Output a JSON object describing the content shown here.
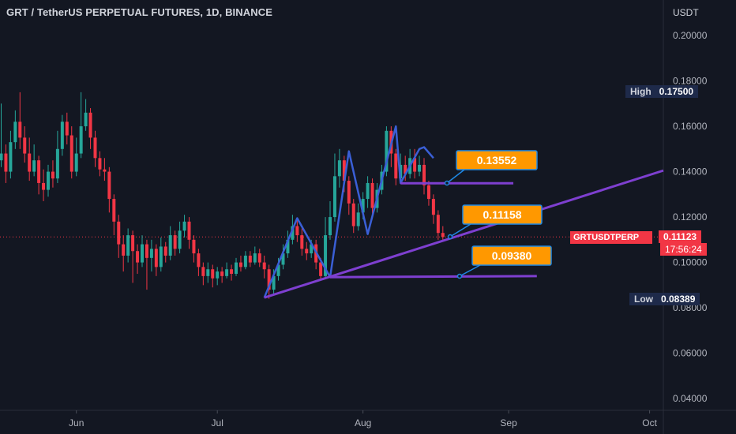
{
  "header": {
    "title": "GRT / TetherUS PERPETUAL FUTURES, 1D, BINANCE"
  },
  "price_axis": {
    "currency": "USDT"
  },
  "markers": {
    "high": {
      "label": "High",
      "value": "0.17500"
    },
    "low": {
      "label": "Low",
      "value": "0.08389"
    },
    "last": {
      "symbol": "GRTUSDTPERP",
      "value": "0.11123",
      "countdown": "17:56:24"
    }
  },
  "annotations": [
    {
      "text": "0.13552",
      "value": 0.13552
    },
    {
      "text": "0.11158",
      "value": 0.11158
    },
    {
      "text": "0.09380",
      "value": 0.0938
    }
  ],
  "colors": {
    "up": "#26a69a",
    "down": "#f23645",
    "background": "#131722",
    "pattern": "#3a5fd6",
    "support": "#7e3fd0",
    "callout": "#ff9800",
    "callout_border": "#1e88e5"
  },
  "chart_data": {
    "type": "candlestick",
    "title": "GRT / TetherUS PERPETUAL FUTURES, 1D, BINANCE",
    "ylabel": "USDT",
    "ylim": [
      0.035,
      0.215
    ],
    "y_ticks": [
      "0.20000",
      "0.18000",
      "0.16000",
      "0.14000",
      "0.12000",
      "0.10000",
      "0.08000",
      "0.06000",
      "0.04000"
    ],
    "x_ticks": [
      "Jun",
      "Jul",
      "Aug",
      "Sep",
      "Oct"
    ],
    "x_tick_day": [
      16,
      46,
      77,
      108,
      138
    ],
    "candles": [
      [
        0.145,
        0.148,
        0.17,
        0.142
      ],
      [
        0.148,
        0.14,
        0.152,
        0.135
      ],
      [
        0.14,
        0.153,
        0.158,
        0.137
      ],
      [
        0.153,
        0.162,
        0.167,
        0.15
      ],
      [
        0.162,
        0.155,
        0.175,
        0.15
      ],
      [
        0.155,
        0.148,
        0.16,
        0.144
      ],
      [
        0.148,
        0.14,
        0.155,
        0.136
      ],
      [
        0.14,
        0.145,
        0.152,
        0.138
      ],
      [
        0.145,
        0.135,
        0.147,
        0.13
      ],
      [
        0.135,
        0.132,
        0.141,
        0.127
      ],
      [
        0.132,
        0.14,
        0.143,
        0.129
      ],
      [
        0.14,
        0.137,
        0.145,
        0.133
      ],
      [
        0.137,
        0.15,
        0.158,
        0.135
      ],
      [
        0.15,
        0.162,
        0.165,
        0.147
      ],
      [
        0.162,
        0.156,
        0.166,
        0.152
      ],
      [
        0.156,
        0.14,
        0.16,
        0.137
      ],
      [
        0.14,
        0.148,
        0.155,
        0.138
      ],
      [
        0.148,
        0.16,
        0.175,
        0.146
      ],
      [
        0.16,
        0.166,
        0.172,
        0.158
      ],
      [
        0.166,
        0.155,
        0.168,
        0.15
      ],
      [
        0.155,
        0.146,
        0.158,
        0.142
      ],
      [
        0.146,
        0.141,
        0.149,
        0.138
      ],
      [
        0.141,
        0.14,
        0.146,
        0.136
      ],
      [
        0.14,
        0.128,
        0.142,
        0.122
      ],
      [
        0.128,
        0.118,
        0.13,
        0.112
      ],
      [
        0.118,
        0.108,
        0.121,
        0.102
      ],
      [
        0.108,
        0.103,
        0.112,
        0.096
      ],
      [
        0.103,
        0.112,
        0.115,
        0.1
      ],
      [
        0.112,
        0.105,
        0.114,
        0.091
      ],
      [
        0.105,
        0.1,
        0.108,
        0.095
      ],
      [
        0.1,
        0.108,
        0.112,
        0.098
      ],
      [
        0.108,
        0.102,
        0.11,
        0.088
      ],
      [
        0.102,
        0.106,
        0.11,
        0.096
      ],
      [
        0.106,
        0.098,
        0.108,
        0.094
      ],
      [
        0.098,
        0.107,
        0.111,
        0.096
      ],
      [
        0.107,
        0.103,
        0.109,
        0.1
      ],
      [
        0.103,
        0.112,
        0.116,
        0.101
      ],
      [
        0.112,
        0.106,
        0.114,
        0.103
      ],
      [
        0.106,
        0.114,
        0.118,
        0.104
      ],
      [
        0.114,
        0.118,
        0.121,
        0.111
      ],
      [
        0.118,
        0.11,
        0.12,
        0.106
      ],
      [
        0.11,
        0.104,
        0.112,
        0.1
      ],
      [
        0.104,
        0.098,
        0.106,
        0.094
      ],
      [
        0.098,
        0.094,
        0.1,
        0.09
      ],
      [
        0.094,
        0.097,
        0.1,
        0.091
      ],
      [
        0.097,
        0.093,
        0.099,
        0.089
      ],
      [
        0.093,
        0.096,
        0.098,
        0.09
      ],
      [
        0.096,
        0.094,
        0.098,
        0.091
      ],
      [
        0.094,
        0.097,
        0.1,
        0.093
      ],
      [
        0.097,
        0.095,
        0.099,
        0.092
      ],
      [
        0.095,
        0.1,
        0.102,
        0.094
      ],
      [
        0.1,
        0.098,
        0.103,
        0.096
      ],
      [
        0.098,
        0.103,
        0.105,
        0.097
      ],
      [
        0.103,
        0.1,
        0.105,
        0.098
      ],
      [
        0.1,
        0.104,
        0.107,
        0.099
      ],
      [
        0.104,
        0.1,
        0.106,
        0.098
      ],
      [
        0.1,
        0.097,
        0.103,
        0.093
      ],
      [
        0.097,
        0.088,
        0.099,
        0.084
      ],
      [
        0.088,
        0.094,
        0.097,
        0.086
      ],
      [
        0.094,
        0.099,
        0.102,
        0.092
      ],
      [
        0.099,
        0.104,
        0.108,
        0.097
      ],
      [
        0.104,
        0.11,
        0.114,
        0.102
      ],
      [
        0.11,
        0.116,
        0.121,
        0.108
      ],
      [
        0.116,
        0.112,
        0.119,
        0.109
      ],
      [
        0.112,
        0.106,
        0.115,
        0.103
      ],
      [
        0.106,
        0.104,
        0.109,
        0.101
      ],
      [
        0.104,
        0.108,
        0.11,
        0.102
      ],
      [
        0.108,
        0.1,
        0.11,
        0.097
      ],
      [
        0.1,
        0.094,
        0.102,
        0.092
      ],
      [
        0.094,
        0.112,
        0.12,
        0.093
      ],
      [
        0.112,
        0.12,
        0.127,
        0.11
      ],
      [
        0.12,
        0.138,
        0.148,
        0.118
      ],
      [
        0.138,
        0.145,
        0.15,
        0.133
      ],
      [
        0.145,
        0.136,
        0.147,
        0.131
      ],
      [
        0.136,
        0.126,
        0.138,
        0.121
      ],
      [
        0.126,
        0.116,
        0.128,
        0.113
      ],
      [
        0.116,
        0.122,
        0.126,
        0.114
      ],
      [
        0.122,
        0.128,
        0.131,
        0.119
      ],
      [
        0.128,
        0.135,
        0.138,
        0.124
      ],
      [
        0.135,
        0.124,
        0.137,
        0.121
      ],
      [
        0.124,
        0.132,
        0.135,
        0.122
      ],
      [
        0.132,
        0.14,
        0.143,
        0.13
      ],
      [
        0.14,
        0.158,
        0.16,
        0.138
      ],
      [
        0.158,
        0.148,
        0.16,
        0.142
      ],
      [
        0.148,
        0.137,
        0.15,
        0.134
      ],
      [
        0.137,
        0.143,
        0.148,
        0.135
      ],
      [
        0.143,
        0.139,
        0.147,
        0.136
      ],
      [
        0.139,
        0.146,
        0.15,
        0.137
      ],
      [
        0.146,
        0.14,
        0.15,
        0.137
      ],
      [
        0.14,
        0.143,
        0.147,
        0.138
      ],
      [
        0.143,
        0.134,
        0.146,
        0.13
      ],
      [
        0.134,
        0.128,
        0.136,
        0.125
      ],
      [
        0.128,
        0.121,
        0.13,
        0.117
      ],
      [
        0.121,
        0.113,
        0.123,
        0.11
      ],
      [
        0.113,
        0.1112,
        0.116,
        0.11
      ]
    ]
  }
}
